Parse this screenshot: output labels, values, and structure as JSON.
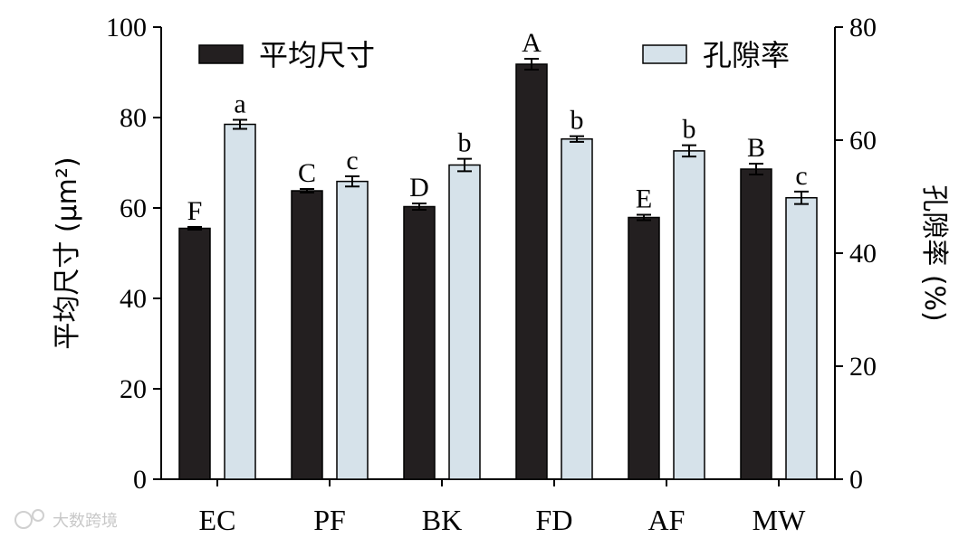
{
  "chart_data": {
    "type": "bar",
    "categories": [
      "EC",
      "PF",
      "BK",
      "FD",
      "AF",
      "MW"
    ],
    "series": [
      {
        "name": "平均尺寸",
        "axis": "left",
        "color": "#231f20",
        "values": [
          55.5,
          63.8,
          60.3,
          91.8,
          57.9,
          68.6
        ],
        "errors": [
          0.3,
          0.4,
          0.7,
          1.2,
          0.6,
          1.2
        ],
        "labels": [
          "F",
          "C",
          "D",
          "A",
          "E",
          "B"
        ]
      },
      {
        "name": "孔隙率",
        "axis": "right",
        "color": "#d6e2ea",
        "values": [
          62.8,
          52.7,
          55.6,
          60.2,
          58.1,
          49.8
        ],
        "errors": [
          0.8,
          0.9,
          1.1,
          0.5,
          1.0,
          1.1
        ],
        "labels": [
          "a",
          "c",
          "b",
          "b",
          "b",
          "c"
        ]
      }
    ],
    "ylabel": "平均尺寸 (μm²)",
    "ylabel_right": "孔隙率 (%)",
    "ylim": [
      0,
      100
    ],
    "ylim_right": [
      0,
      80
    ],
    "yticks": [
      "0",
      "20",
      "40",
      "60",
      "80",
      "100"
    ],
    "yticks_right": [
      "0",
      "20",
      "40",
      "60",
      "80"
    ],
    "legend_position": "top",
    "grid": false
  },
  "watermark": "大数跨境"
}
